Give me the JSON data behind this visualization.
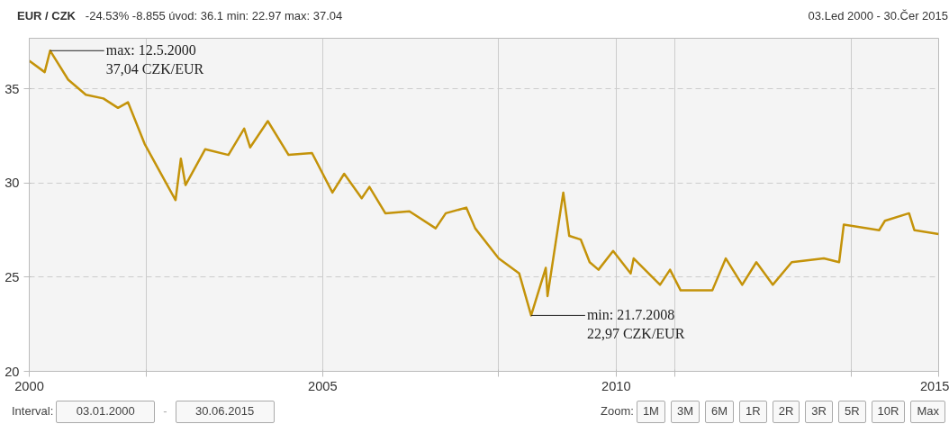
{
  "chart_data": {
    "type": "line",
    "title": "EUR / CZK",
    "subtitle": "-24.53% -8.855 úvod: 36.1 min: 22.97 max: 37.04",
    "x": [
      "2000-01-03",
      "2000-04-08",
      "2000-05-12",
      "2000-09-01",
      "2000-12-20",
      "2001-04-08",
      "2001-07-08",
      "2001-09-08",
      "2001-12-20",
      "2002-04-08",
      "2002-07-01",
      "2002-08-03",
      "2002-09-01",
      "2003-01-01",
      "2003-05-26",
      "2003-09-01",
      "2003-10-08",
      "2004-01-26",
      "2004-06-03",
      "2004-10-27",
      "2005-03-03",
      "2005-05-15",
      "2005-09-01",
      "2005-10-19",
      "2006-01-26",
      "2006-06-25",
      "2006-12-05",
      "2007-02-06",
      "2007-06-14",
      "2007-08-08",
      "2008-01-01",
      "2008-05-08",
      "2008-07-21",
      "2008-10-20",
      "2008-10-31",
      "2009-02-06",
      "2009-03-15",
      "2009-05-26",
      "2009-07-20",
      "2009-09-13",
      "2009-12-13",
      "2010-04-01",
      "2010-04-20",
      "2010-10-01",
      "2010-12-02",
      "2011-02-06",
      "2011-08-22",
      "2011-11-14",
      "2012-02-24",
      "2012-05-22",
      "2012-09-01",
      "2012-12-28",
      "2013-07-16",
      "2013-10-19",
      "2013-11-17",
      "2014-06-25",
      "2014-07-31",
      "2014-12-28",
      "2015-01-30",
      "2015-06-30"
    ],
    "series": [
      {
        "color": "#c4930a",
        "values": [
          36.5,
          35.9,
          37.04,
          35.5,
          34.7,
          34.5,
          34.0,
          34.3,
          32.1,
          30.4,
          29.1,
          31.3,
          29.9,
          31.8,
          31.5,
          32.9,
          31.9,
          33.3,
          31.5,
          31.6,
          29.5,
          30.5,
          29.2,
          29.8,
          28.4,
          28.5,
          27.6,
          28.4,
          28.7,
          27.6,
          26.0,
          25.2,
          22.97,
          25.5,
          24.0,
          29.5,
          27.2,
          27.0,
          25.8,
          25.4,
          26.4,
          25.2,
          26.0,
          24.6,
          25.4,
          24.3,
          24.3,
          26.0,
          24.6,
          25.8,
          24.6,
          25.8,
          26.0,
          25.8,
          27.8,
          27.5,
          28.0,
          28.4,
          27.5,
          27.3
        ]
      }
    ],
    "xlim": [
      "2000-01-03",
      "2015-06-30"
    ],
    "xticks": [
      {
        "value": "2000-01-03",
        "label": "2000"
      },
      {
        "value": "2002-01-01",
        "label": null
      },
      {
        "value": "2005-01-01",
        "label": "2005"
      },
      {
        "value": "2008-01-01",
        "label": null
      },
      {
        "value": "2010-01-01",
        "label": "2010"
      },
      {
        "value": "2011-01-01",
        "label": null
      },
      {
        "value": "2014-01-01",
        "label": null
      },
      {
        "value": "2015-06-30",
        "label": "2015"
      }
    ],
    "ylim": [
      20,
      37.7
    ],
    "yticks": [
      20,
      25,
      30,
      35
    ],
    "grid": true,
    "marker": "none",
    "line_style": "solid",
    "annotations": [
      {
        "text": "max: 12.5.2000\n37,04 CZK/EUR",
        "x": "2000-05-12",
        "y": 37.04
      },
      {
        "text": "min: 21.7.2008\n22,97 CZK/EUR",
        "x": "2008-07-21",
        "y": 22.97
      },
      "03.Led 2000 - 30.Čer 2015",
      "Interval:",
      "03.01.2000",
      "-",
      "30.06.2015",
      "Zoom:",
      "1M",
      "3M",
      "6M",
      "1R",
      "2R",
      "3R",
      "5R",
      "10R",
      "Max"
    ]
  }
}
